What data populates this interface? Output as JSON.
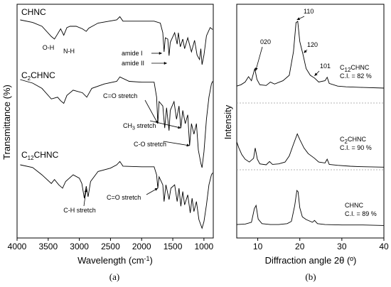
{
  "panels": {
    "a": {
      "letter": "(a)"
    },
    "b": {
      "letter": "(b)"
    }
  },
  "chart_data": [
    {
      "type": "line",
      "panel": "(a)",
      "xlabel": "Wavelength (cm",
      "xlabel_superscript": "-1",
      "xlabel_end": ")",
      "ylabel": "Transmittance (%)",
      "xlim": [
        4000,
        850
      ],
      "x_reversed": true,
      "x_ticks": [
        4000,
        3500,
        3000,
        2500,
        2000,
        1500,
        1000
      ],
      "tick_labels": [
        "4000",
        "3500",
        "3000",
        "2500",
        "2000",
        "1500",
        "1000"
      ],
      "y_ticks_shown": false,
      "series": [
        {
          "name": "CHNC",
          "name_parts": [
            "CHNC",
            "",
            ""
          ],
          "baseline": 0.0,
          "points": [
            [
              3950,
              0.0
            ],
            [
              3750,
              0.04
            ],
            [
              3600,
              0.1
            ],
            [
              3450,
              0.26
            ],
            [
              3400,
              0.3
            ],
            [
              3350,
              0.22
            ],
            [
              3300,
              0.14
            ],
            [
              3250,
              0.24
            ],
            [
              3200,
              0.12
            ],
            [
              3150,
              0.1
            ],
            [
              3050,
              0.1
            ],
            [
              2950,
              0.14
            ],
            [
              2890,
              0.18
            ],
            [
              2850,
              0.13
            ],
            [
              2700,
              0.05
            ],
            [
              2400,
              0.0
            ],
            [
              2350,
              -0.05
            ],
            [
              2300,
              0.02
            ],
            [
              2000,
              0.02
            ],
            [
              1800,
              0.02
            ],
            [
              1700,
              0.05
            ],
            [
              1660,
              0.2
            ],
            [
              1640,
              0.5
            ],
            [
              1620,
              0.28
            ],
            [
              1580,
              0.3
            ],
            [
              1560,
              0.56
            ],
            [
              1540,
              0.35
            ],
            [
              1470,
              0.2
            ],
            [
              1430,
              0.38
            ],
            [
              1410,
              0.2
            ],
            [
              1380,
              0.42
            ],
            [
              1340,
              0.3
            ],
            [
              1310,
              0.45
            ],
            [
              1260,
              0.28
            ],
            [
              1200,
              0.5
            ],
            [
              1150,
              0.32
            ],
            [
              1110,
              0.55
            ],
            [
              1070,
              0.62
            ],
            [
              1050,
              0.45
            ],
            [
              1030,
              0.7
            ],
            [
              1000,
              0.55
            ],
            [
              960,
              0.25
            ],
            [
              900,
              0.12
            ],
            [
              860,
              0.15
            ]
          ]
        },
        {
          "name": "C2CHNC",
          "name_parts": [
            "C",
            "2",
            "CHNC"
          ],
          "baseline": 0.0,
          "points": [
            [
              3950,
              0.0
            ],
            [
              3750,
              0.04
            ],
            [
              3600,
              0.1
            ],
            [
              3450,
              0.22
            ],
            [
              3350,
              0.2
            ],
            [
              3300,
              0.24
            ],
            [
              3250,
              0.27
            ],
            [
              3200,
              0.18
            ],
            [
              3100,
              0.12
            ],
            [
              2950,
              0.15
            ],
            [
              2880,
              0.2
            ],
            [
              2800,
              0.1
            ],
            [
              2600,
              0.05
            ],
            [
              2400,
              0.02
            ],
            [
              2350,
              -0.03
            ],
            [
              2200,
              0.02
            ],
            [
              2000,
              0.03
            ],
            [
              1800,
              0.03
            ],
            [
              1760,
              0.2
            ],
            [
              1740,
              0.5
            ],
            [
              1720,
              0.25
            ],
            [
              1660,
              0.3
            ],
            [
              1630,
              0.55
            ],
            [
              1600,
              0.32
            ],
            [
              1560,
              0.58
            ],
            [
              1540,
              0.35
            ],
            [
              1480,
              0.25
            ],
            [
              1440,
              0.45
            ],
            [
              1400,
              0.3
            ],
            [
              1370,
              0.55
            ],
            [
              1340,
              0.35
            ],
            [
              1300,
              0.5
            ],
            [
              1260,
              0.4
            ],
            [
              1230,
              0.75
            ],
            [
              1200,
              0.5
            ],
            [
              1160,
              0.62
            ],
            [
              1120,
              0.5
            ],
            [
              1090,
              0.8
            ],
            [
              1050,
              0.95
            ],
            [
              1030,
              1.0
            ],
            [
              1000,
              0.82
            ],
            [
              960,
              0.45
            ],
            [
              920,
              0.2
            ],
            [
              880,
              0.05
            ],
            [
              860,
              0.02
            ]
          ]
        },
        {
          "name": "C12CHNC",
          "name_parts": [
            "C",
            "12",
            "CHNC"
          ],
          "baseline": 0.0,
          "points": [
            [
              3950,
              0.0
            ],
            [
              3750,
              0.04
            ],
            [
              3600,
              0.15
            ],
            [
              3450,
              0.28
            ],
            [
              3400,
              0.22
            ],
            [
              3330,
              0.3
            ],
            [
              3270,
              0.35
            ],
            [
              3220,
              0.25
            ],
            [
              3100,
              0.15
            ],
            [
              3000,
              0.2
            ],
            [
              2960,
              0.28
            ],
            [
              2920,
              0.5
            ],
            [
              2890,
              0.32
            ],
            [
              2860,
              0.48
            ],
            [
              2820,
              0.25
            ],
            [
              2700,
              0.1
            ],
            [
              2500,
              0.05
            ],
            [
              2400,
              0.0
            ],
            [
              2350,
              -0.05
            ],
            [
              2300,
              0.02
            ],
            [
              2000,
              0.03
            ],
            [
              1800,
              0.03
            ],
            [
              1760,
              0.15
            ],
            [
              1740,
              0.35
            ],
            [
              1720,
              0.18
            ],
            [
              1660,
              0.3
            ],
            [
              1640,
              0.55
            ],
            [
              1610,
              0.3
            ],
            [
              1560,
              0.52
            ],
            [
              1530,
              0.35
            ],
            [
              1470,
              0.3
            ],
            [
              1430,
              0.55
            ],
            [
              1400,
              0.35
            ],
            [
              1370,
              0.62
            ],
            [
              1340,
              0.4
            ],
            [
              1310,
              0.6
            ],
            [
              1260,
              0.45
            ],
            [
              1220,
              0.72
            ],
            [
              1190,
              0.5
            ],
            [
              1160,
              0.7
            ],
            [
              1120,
              0.55
            ],
            [
              1080,
              0.82
            ],
            [
              1050,
              0.9
            ],
            [
              1030,
              0.95
            ],
            [
              1000,
              0.85
            ],
            [
              960,
              0.6
            ],
            [
              920,
              0.3
            ],
            [
              880,
              0.15
            ],
            [
              860,
              0.12
            ]
          ]
        }
      ],
      "annotations": [
        {
          "text": "O-H",
          "target_x": 3400,
          "series": "CHNC"
        },
        {
          "text": "N-H",
          "target_x": 3250,
          "series": "CHNC"
        },
        {
          "text": "amide I",
          "target_x": 1640,
          "series": "CHNC"
        },
        {
          "text": "amide II",
          "target_x": 1560,
          "series": "CHNC"
        },
        {
          "text": "C=O stretch",
          "target_x": 1740,
          "series": "C2CHNC"
        },
        {
          "text": "CH",
          "sub": "3",
          "text_end": " stretch",
          "target_x": 1370,
          "series": "C2CHNC"
        },
        {
          "text": "C-O stretch",
          "target_x": 1230,
          "series": "C2CHNC"
        },
        {
          "text": "C-H stretch",
          "target_x": 2890,
          "series": "C12CHNC"
        },
        {
          "text": "C=O stretch",
          "target_x": 1740,
          "series": "C12CHNC"
        }
      ]
    },
    {
      "type": "line",
      "panel": "(b)",
      "xlabel": "Diffraction angle 2θ (º)",
      "ylabel": "Intensity",
      "xlim": [
        5,
        40
      ],
      "x_ticks": [
        10,
        20,
        30,
        40
      ],
      "tick_labels": [
        "10",
        "20",
        "30",
        "40"
      ],
      "y_ticks_shown": false,
      "series": [
        {
          "name": "C12CHNC",
          "name_parts": [
            "C",
            "12",
            "CHNC"
          ],
          "ci": "C.I. = 82 %",
          "points": [
            [
              5,
              0.04
            ],
            [
              6,
              0.06
            ],
            [
              7,
              0.1
            ],
            [
              7.8,
              0.18
            ],
            [
              8.5,
              0.12
            ],
            [
              9.3,
              0.3
            ],
            [
              9.8,
              0.14
            ],
            [
              10.5,
              0.06
            ],
            [
              12,
              0.05
            ],
            [
              13,
              0.1
            ],
            [
              14,
              0.07
            ],
            [
              16,
              0.12
            ],
            [
              17.5,
              0.2
            ],
            [
              18.5,
              0.55
            ],
            [
              19.1,
              0.98
            ],
            [
              19.5,
              1.0
            ],
            [
              20,
              0.7
            ],
            [
              20.8,
              0.5
            ],
            [
              21.5,
              0.3
            ],
            [
              22.5,
              0.2
            ],
            [
              23.5,
              0.16
            ],
            [
              24.5,
              0.1
            ],
            [
              26,
              0.12
            ],
            [
              26.5,
              0.17
            ],
            [
              27,
              0.08
            ],
            [
              29,
              0.04
            ],
            [
              31,
              0.03
            ],
            [
              35,
              0.02
            ],
            [
              40,
              0.01
            ]
          ]
        },
        {
          "name": "C2CHNC",
          "name_parts": [
            "C",
            "2",
            "CHNC"
          ],
          "ci": "C.I. = 90 %",
          "points": [
            [
              5,
              0.55
            ],
            [
              5.5,
              0.42
            ],
            [
              6.2,
              0.28
            ],
            [
              7,
              0.18
            ],
            [
              8,
              0.12
            ],
            [
              9,
              0.2
            ],
            [
              9.4,
              0.42
            ],
            [
              9.9,
              0.18
            ],
            [
              10.5,
              0.08
            ],
            [
              12,
              0.06
            ],
            [
              12.8,
              0.13
            ],
            [
              13.5,
              0.07
            ],
            [
              15,
              0.08
            ],
            [
              16.5,
              0.12
            ],
            [
              17.5,
              0.25
            ],
            [
              18.5,
              0.5
            ],
            [
              19.4,
              0.72
            ],
            [
              20,
              0.6
            ],
            [
              21,
              0.42
            ],
            [
              22,
              0.3
            ],
            [
              23.5,
              0.2
            ],
            [
              24.5,
              0.12
            ],
            [
              26,
              0.1
            ],
            [
              26.5,
              0.18
            ],
            [
              27,
              0.07
            ],
            [
              29,
              0.05
            ],
            [
              32,
              0.03
            ],
            [
              35,
              0.02
            ],
            [
              40,
              0.01
            ]
          ]
        },
        {
          "name": "CHNC",
          "name_parts": [
            "CHNC",
            "",
            ""
          ],
          "ci": "C.I. = 89 %",
          "points": [
            [
              5,
              0.03
            ],
            [
              7,
              0.04
            ],
            [
              8.5,
              0.08
            ],
            [
              9.2,
              0.38
            ],
            [
              9.6,
              0.45
            ],
            [
              10.1,
              0.15
            ],
            [
              11,
              0.05
            ],
            [
              13,
              0.03
            ],
            [
              15,
              0.03
            ],
            [
              17,
              0.05
            ],
            [
              18,
              0.1
            ],
            [
              18.8,
              0.45
            ],
            [
              19.3,
              0.78
            ],
            [
              19.6,
              0.75
            ],
            [
              20,
              0.4
            ],
            [
              20.6,
              0.2
            ],
            [
              21.5,
              0.14
            ],
            [
              23,
              0.08
            ],
            [
              23.5,
              0.12
            ],
            [
              24.2,
              0.05
            ],
            [
              26,
              0.03
            ],
            [
              30,
              0.02
            ],
            [
              35,
              0.02
            ],
            [
              40,
              0.01
            ]
          ]
        }
      ],
      "peak_labels": [
        {
          "text": "020",
          "x": 9.5,
          "series": "C12CHNC"
        },
        {
          "text": "110",
          "x": 19.3,
          "series": "C12CHNC"
        },
        {
          "text": "120",
          "x": 20.8,
          "series": "C12CHNC"
        },
        {
          "text": "101",
          "x": 23.5,
          "series": "C12CHNC"
        }
      ]
    }
  ]
}
